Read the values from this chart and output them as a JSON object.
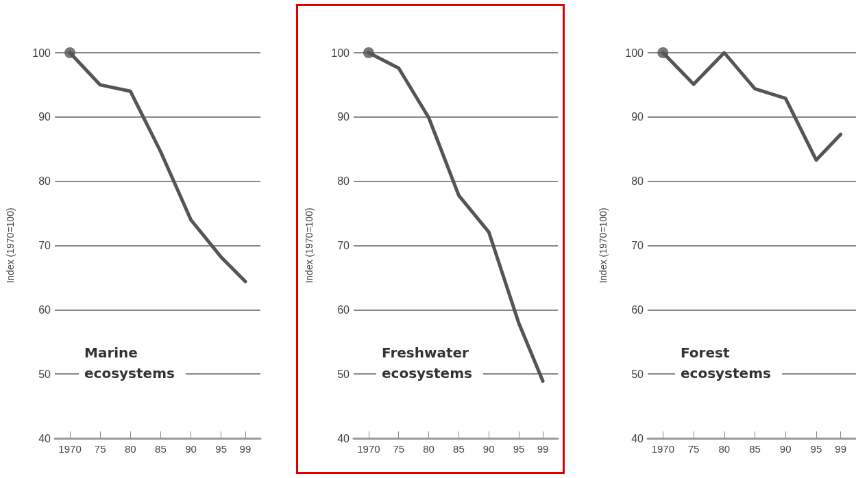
{
  "chart_data": [
    {
      "type": "line",
      "title": "Marine ecosystems",
      "ylabel": "Index (1970=100)",
      "x": [
        1970,
        1975,
        1980,
        1985,
        1990,
        1995,
        1999
      ],
      "series": [
        {
          "color": "#555555",
          "values": [
            100,
            95,
            94,
            84.6,
            74,
            68.2,
            64.4
          ]
        },
        {
          "type": "scatter",
          "marker": "circle",
          "color": "#555555",
          "values": [
            100,
            null,
            null,
            null,
            null,
            null,
            null
          ]
        }
      ],
      "xlim": [
        1967.5,
        2001.5
      ],
      "xticks": [
        {
          "value": 1970,
          "label": "1970"
        },
        {
          "value": 1975,
          "label": "75"
        },
        {
          "value": 1980,
          "label": "80"
        },
        {
          "value": 1985,
          "label": "85"
        },
        {
          "value": 1990,
          "label": "90"
        },
        {
          "value": 1995,
          "label": "95"
        },
        {
          "value": 1999,
          "label": "99"
        }
      ],
      "ylim": [
        40,
        100
      ],
      "yticks": [
        40,
        50,
        60,
        70,
        80,
        90,
        100
      ],
      "grid": "y",
      "marker": "none",
      "line_style": "solid"
    },
    {
      "type": "line",
      "title": "Freshwater ecosystems",
      "ylabel": "Index (1970=100)",
      "x": [
        1970,
        1975,
        1980,
        1985,
        1990,
        1995,
        1999
      ],
      "series": [
        {
          "color": "#555555",
          "values": [
            100,
            97.6,
            89.9,
            77.8,
            72.1,
            57.9,
            48.9
          ]
        },
        {
          "type": "scatter",
          "marker": "circle",
          "color": "#555555",
          "values": [
            100,
            null,
            null,
            null,
            null,
            null,
            null
          ]
        }
      ],
      "xlim": [
        1967.5,
        2001.5
      ],
      "xticks": [
        {
          "value": 1970,
          "label": "1970"
        },
        {
          "value": 1975,
          "label": "75"
        },
        {
          "value": 1980,
          "label": "80"
        },
        {
          "value": 1985,
          "label": "85"
        },
        {
          "value": 1990,
          "label": "90"
        },
        {
          "value": 1995,
          "label": "95"
        },
        {
          "value": 1999,
          "label": "99"
        }
      ],
      "ylim": [
        40,
        100
      ],
      "yticks": [
        40,
        50,
        60,
        70,
        80,
        90,
        100
      ],
      "grid": "y",
      "marker": "none",
      "line_style": "solid"
    },
    {
      "type": "line",
      "title": "Forest ecosystems",
      "ylabel": "Index (1970=100)",
      "x": [
        1970,
        1975,
        1980,
        1985,
        1990,
        1995,
        1999
      ],
      "series": [
        {
          "color": "#555555",
          "values": [
            100,
            95.1,
            100,
            94.4,
            92.9,
            83.3,
            87.3
          ]
        },
        {
          "type": "scatter",
          "marker": "circle",
          "color": "#555555",
          "values": [
            100,
            null,
            null,
            null,
            null,
            null,
            null
          ]
        }
      ],
      "xlim": [
        1967.5,
        2001.5
      ],
      "xticks": [
        {
          "value": 1970,
          "label": "1970"
        },
        {
          "value": 1975,
          "label": "75"
        },
        {
          "value": 1980,
          "label": "80"
        },
        {
          "value": 1985,
          "label": "85"
        },
        {
          "value": 1990,
          "label": "90"
        },
        {
          "value": 1995,
          "label": "95"
        },
        {
          "value": 1999,
          "label": "99"
        }
      ],
      "ylim": [
        40,
        100
      ],
      "yticks": [
        40,
        50,
        60,
        70,
        80,
        90,
        100
      ],
      "grid": "y",
      "marker": "none",
      "line_style": "solid"
    }
  ]
}
